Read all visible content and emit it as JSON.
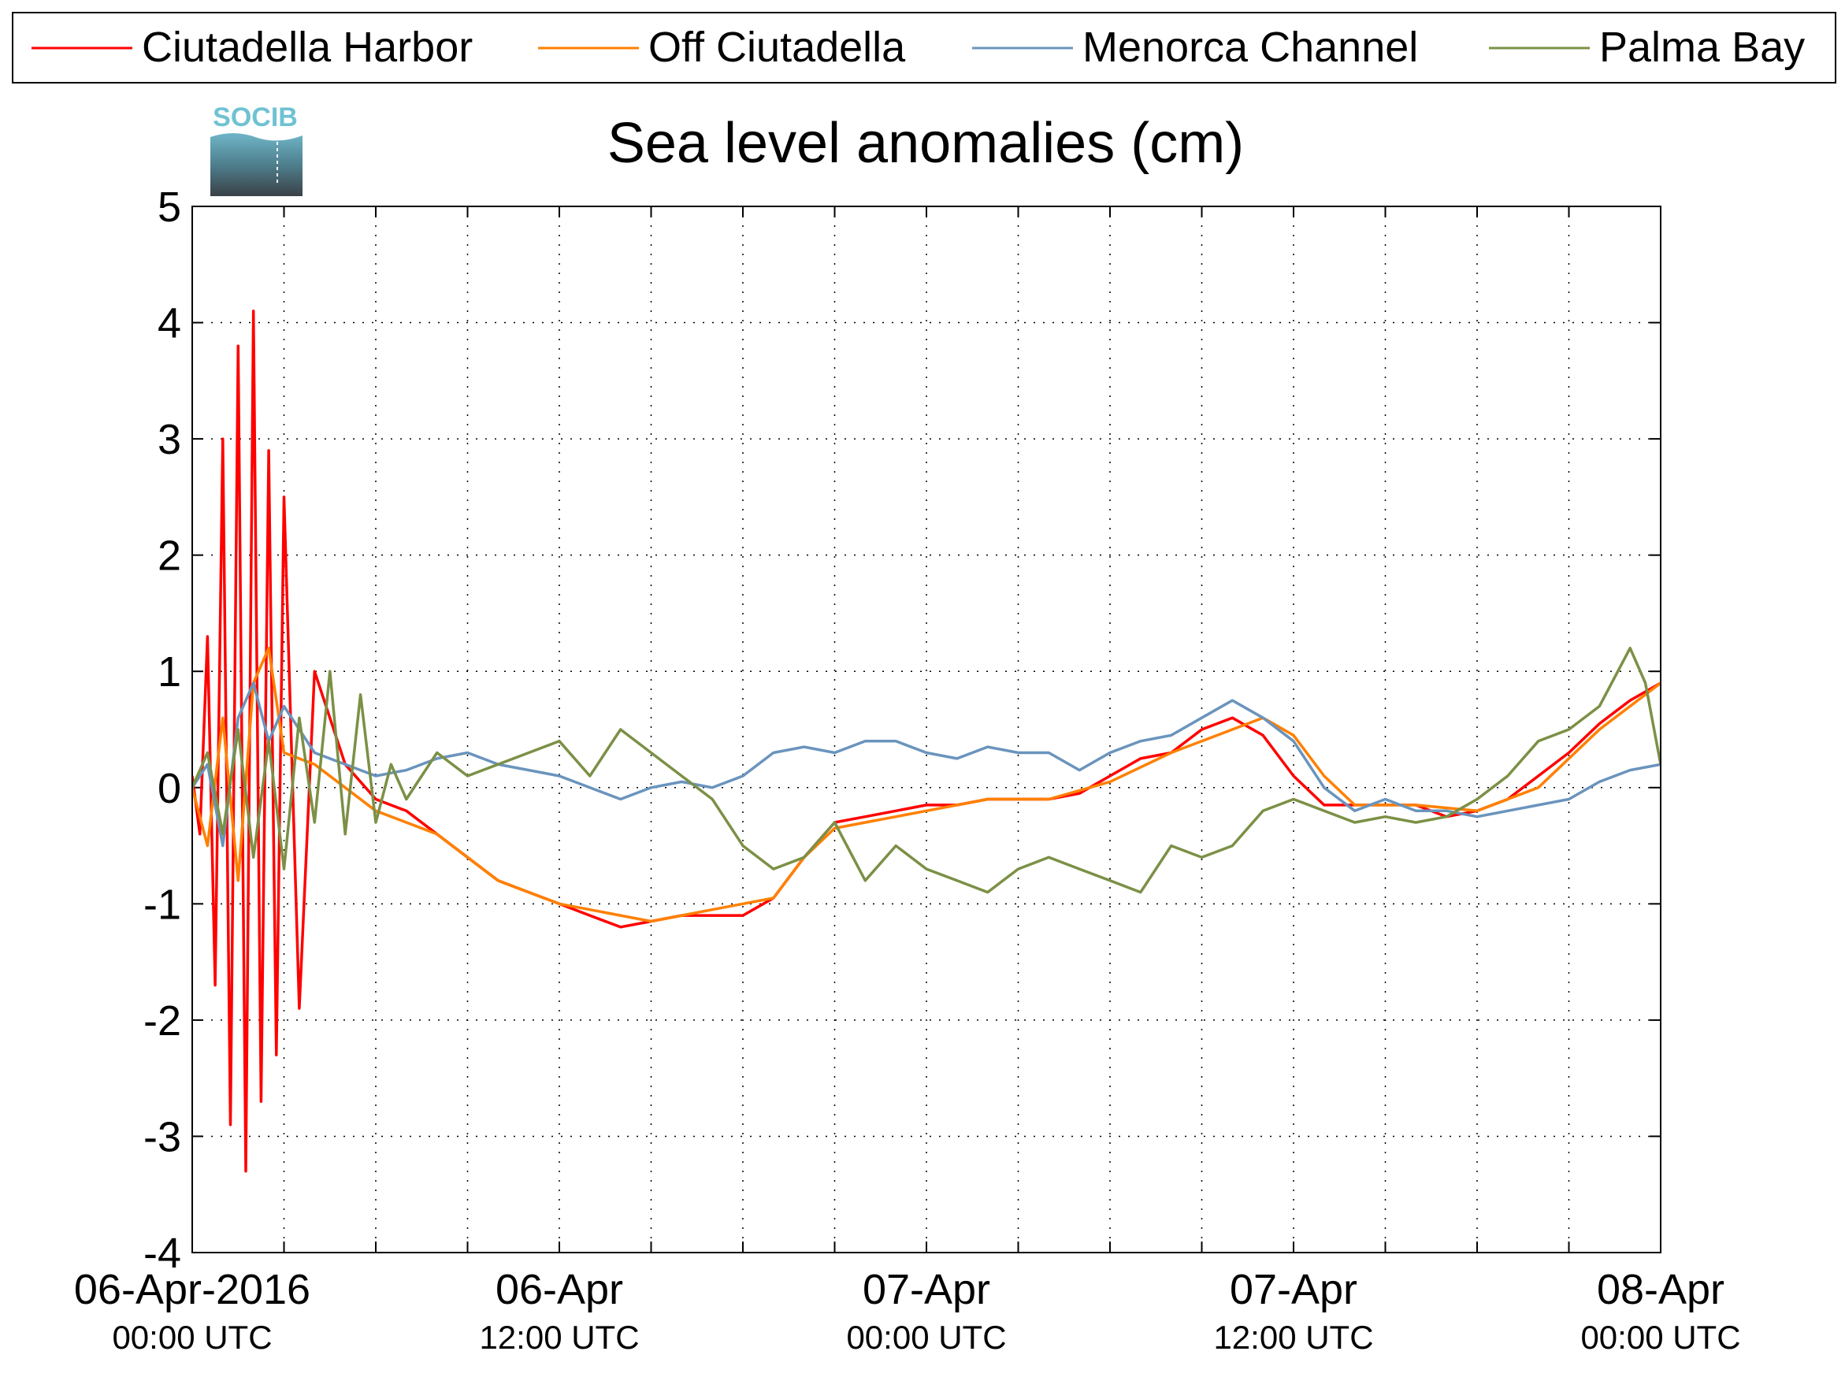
{
  "chart_data": {
    "type": "line",
    "title": "Sea level anomalies (cm)",
    "xlabel": "",
    "ylabel": "",
    "ylim": [
      -4,
      5
    ],
    "yticks": [
      -4,
      -3,
      -2,
      -1,
      0,
      1,
      2,
      3,
      4,
      5
    ],
    "ytick_labels": [
      "-4",
      "-3",
      "-2",
      "-1",
      "0",
      "1",
      "2",
      "3",
      "4",
      "5"
    ],
    "xlim": [
      "2016-04-06T00:00Z",
      "2016-04-08T00:00Z"
    ],
    "x_minor_tick_hours": 3,
    "grid": true,
    "legend_position": "top",
    "xticks": [
      {
        "x": "2016-04-06T00:00Z",
        "date": "06-Apr-2016",
        "time": "00:00 UTC"
      },
      {
        "x": "2016-04-06T12:00Z",
        "date": "06-Apr",
        "time": "12:00 UTC"
      },
      {
        "x": "2016-04-07T00:00Z",
        "date": "07-Apr",
        "time": "00:00 UTC"
      },
      {
        "x": "2016-04-07T12:00Z",
        "date": "07-Apr",
        "time": "12:00 UTC"
      },
      {
        "x": "2016-04-08T00:00Z",
        "date": "08-Apr",
        "time": "00:00 UTC"
      }
    ],
    "logo_text": "SOCIB",
    "series": [
      {
        "name": "Ciutadella Harbor",
        "color": "#ff0000",
        "x": [
          "2016-04-06T00:00Z",
          "2016-04-06T00:15Z",
          "2016-04-06T00:30Z",
          "2016-04-06T00:45Z",
          "2016-04-06T01:00Z",
          "2016-04-06T01:15Z",
          "2016-04-06T01:30Z",
          "2016-04-06T01:45Z",
          "2016-04-06T02:00Z",
          "2016-04-06T02:15Z",
          "2016-04-06T02:30Z",
          "2016-04-06T02:45Z",
          "2016-04-06T03:00Z",
          "2016-04-06T03:30Z",
          "2016-04-06T04:00Z",
          "2016-04-06T05:00Z",
          "2016-04-06T06:00Z",
          "2016-04-06T07:00Z",
          "2016-04-06T08:00Z",
          "2016-04-06T09:00Z",
          "2016-04-06T10:00Z",
          "2016-04-06T11:00Z",
          "2016-04-06T12:00Z",
          "2016-04-06T13:00Z",
          "2016-04-06T14:00Z",
          "2016-04-06T15:00Z",
          "2016-04-06T16:00Z",
          "2016-04-06T17:00Z",
          "2016-04-06T18:00Z",
          "2016-04-06T19:00Z",
          "2016-04-06T20:00Z",
          "2016-04-06T21:00Z",
          "2016-04-06T22:00Z",
          "2016-04-06T23:00Z",
          "2016-04-07T00:00Z",
          "2016-04-07T01:00Z",
          "2016-04-07T02:00Z",
          "2016-04-07T03:00Z",
          "2016-04-07T04:00Z",
          "2016-04-07T05:00Z",
          "2016-04-07T06:00Z",
          "2016-04-07T07:00Z",
          "2016-04-07T08:00Z",
          "2016-04-07T09:00Z",
          "2016-04-07T10:00Z",
          "2016-04-07T11:00Z",
          "2016-04-07T12:00Z",
          "2016-04-07T13:00Z",
          "2016-04-07T14:00Z",
          "2016-04-07T15:00Z",
          "2016-04-07T16:00Z",
          "2016-04-07T17:00Z",
          "2016-04-07T18:00Z",
          "2016-04-07T19:00Z",
          "2016-04-07T20:00Z",
          "2016-04-07T21:00Z",
          "2016-04-07T22:00Z",
          "2016-04-07T23:00Z",
          "2016-04-08T00:00Z"
        ],
        "y": [
          0.1,
          -0.4,
          1.3,
          -1.7,
          3.0,
          -2.9,
          3.8,
          -3.3,
          4.1,
          -2.7,
          2.9,
          -2.3,
          2.5,
          -1.9,
          1.0,
          0.2,
          -0.1,
          -0.2,
          -0.4,
          -0.6,
          -0.8,
          -0.9,
          -1.0,
          -1.1,
          -1.2,
          -1.15,
          -1.1,
          -1.1,
          -1.1,
          -0.95,
          -0.6,
          -0.3,
          -0.25,
          -0.2,
          -0.15,
          -0.15,
          -0.1,
          -0.1,
          -0.1,
          -0.05,
          0.1,
          0.25,
          0.3,
          0.5,
          0.6,
          0.45,
          0.1,
          -0.15,
          -0.15,
          -0.15,
          -0.15,
          -0.25,
          -0.2,
          -0.1,
          0.1,
          0.3,
          0.55,
          0.75,
          0.9
        ]
      },
      {
        "name": "Off Ciutadella",
        "color": "#ff8000",
        "x": [
          "2016-04-06T00:00Z",
          "2016-04-06T00:30Z",
          "2016-04-06T01:00Z",
          "2016-04-06T01:30Z",
          "2016-04-06T02:00Z",
          "2016-04-06T02:30Z",
          "2016-04-06T03:00Z",
          "2016-04-06T04:00Z",
          "2016-04-06T05:00Z",
          "2016-04-06T06:00Z",
          "2016-04-06T07:00Z",
          "2016-04-06T08:00Z",
          "2016-04-06T09:00Z",
          "2016-04-06T10:00Z",
          "2016-04-06T11:00Z",
          "2016-04-06T12:00Z",
          "2016-04-06T13:00Z",
          "2016-04-06T14:00Z",
          "2016-04-06T15:00Z",
          "2016-04-06T16:00Z",
          "2016-04-06T17:00Z",
          "2016-04-06T18:00Z",
          "2016-04-06T19:00Z",
          "2016-04-06T20:00Z",
          "2016-04-06T21:00Z",
          "2016-04-06T22:00Z",
          "2016-04-06T23:00Z",
          "2016-04-07T00:00Z",
          "2016-04-07T02:00Z",
          "2016-04-07T04:00Z",
          "2016-04-07T06:00Z",
          "2016-04-07T08:00Z",
          "2016-04-07T10:00Z",
          "2016-04-07T11:00Z",
          "2016-04-07T12:00Z",
          "2016-04-07T13:00Z",
          "2016-04-07T14:00Z",
          "2016-04-07T16:00Z",
          "2016-04-07T18:00Z",
          "2016-04-07T20:00Z",
          "2016-04-07T22:00Z",
          "2016-04-08T00:00Z"
        ],
        "y": [
          0.0,
          -0.5,
          0.6,
          -0.8,
          0.9,
          1.2,
          0.3,
          0.2,
          0.0,
          -0.2,
          -0.3,
          -0.4,
          -0.6,
          -0.8,
          -0.9,
          -1.0,
          -1.05,
          -1.1,
          -1.15,
          -1.1,
          -1.05,
          -1.0,
          -0.95,
          -0.6,
          -0.35,
          -0.3,
          -0.25,
          -0.2,
          -0.1,
          -0.1,
          0.05,
          0.3,
          0.5,
          0.6,
          0.45,
          0.1,
          -0.15,
          -0.15,
          -0.2,
          0.0,
          0.5,
          0.9
        ]
      },
      {
        "name": "Menorca Channel",
        "color": "#6a94bd",
        "x": [
          "2016-04-06T00:00Z",
          "2016-04-06T00:30Z",
          "2016-04-06T01:00Z",
          "2016-04-06T01:30Z",
          "2016-04-06T02:00Z",
          "2016-04-06T02:30Z",
          "2016-04-06T03:00Z",
          "2016-04-06T04:00Z",
          "2016-04-06T05:00Z",
          "2016-04-06T06:00Z",
          "2016-04-06T07:00Z",
          "2016-04-06T08:00Z",
          "2016-04-06T09:00Z",
          "2016-04-06T10:00Z",
          "2016-04-06T11:00Z",
          "2016-04-06T12:00Z",
          "2016-04-06T13:00Z",
          "2016-04-06T14:00Z",
          "2016-04-06T15:00Z",
          "2016-04-06T16:00Z",
          "2016-04-06T17:00Z",
          "2016-04-06T18:00Z",
          "2016-04-06T19:00Z",
          "2016-04-06T20:00Z",
          "2016-04-06T21:00Z",
          "2016-04-06T22:00Z",
          "2016-04-06T23:00Z",
          "2016-04-07T00:00Z",
          "2016-04-07T01:00Z",
          "2016-04-07T02:00Z",
          "2016-04-07T03:00Z",
          "2016-04-07T04:00Z",
          "2016-04-07T05:00Z",
          "2016-04-07T06:00Z",
          "2016-04-07T07:00Z",
          "2016-04-07T08:00Z",
          "2016-04-07T09:00Z",
          "2016-04-07T10:00Z",
          "2016-04-07T11:00Z",
          "2016-04-07T12:00Z",
          "2016-04-07T13:00Z",
          "2016-04-07T14:00Z",
          "2016-04-07T15:00Z",
          "2016-04-07T16:00Z",
          "2016-04-07T17:00Z",
          "2016-04-07T18:00Z",
          "2016-04-07T19:00Z",
          "2016-04-07T20:00Z",
          "2016-04-07T21:00Z",
          "2016-04-07T22:00Z",
          "2016-04-07T23:00Z",
          "2016-04-08T00:00Z"
        ],
        "y": [
          0.0,
          0.2,
          -0.5,
          0.6,
          0.9,
          0.4,
          0.7,
          0.3,
          0.2,
          0.1,
          0.15,
          0.25,
          0.3,
          0.2,
          0.15,
          0.1,
          0.0,
          -0.1,
          0.0,
          0.05,
          0.0,
          0.1,
          0.3,
          0.35,
          0.3,
          0.4,
          0.4,
          0.3,
          0.25,
          0.35,
          0.3,
          0.3,
          0.15,
          0.3,
          0.4,
          0.45,
          0.6,
          0.75,
          0.6,
          0.4,
          0.0,
          -0.2,
          -0.1,
          -0.2,
          -0.2,
          -0.25,
          -0.2,
          -0.15,
          -0.1,
          0.05,
          0.15,
          0.2
        ]
      },
      {
        "name": "Palma Bay",
        "color": "#7c9046",
        "x": [
          "2016-04-06T00:00Z",
          "2016-04-06T00:30Z",
          "2016-04-06T01:00Z",
          "2016-04-06T01:30Z",
          "2016-04-06T02:00Z",
          "2016-04-06T02:30Z",
          "2016-04-06T03:00Z",
          "2016-04-06T03:30Z",
          "2016-04-06T04:00Z",
          "2016-04-06T04:30Z",
          "2016-04-06T05:00Z",
          "2016-04-06T05:30Z",
          "2016-04-06T06:00Z",
          "2016-04-06T06:30Z",
          "2016-04-06T07:00Z",
          "2016-04-06T08:00Z",
          "2016-04-06T09:00Z",
          "2016-04-06T10:00Z",
          "2016-04-06T11:00Z",
          "2016-04-06T12:00Z",
          "2016-04-06T13:00Z",
          "2016-04-06T14:00Z",
          "2016-04-06T15:00Z",
          "2016-04-06T16:00Z",
          "2016-04-06T17:00Z",
          "2016-04-06T18:00Z",
          "2016-04-06T19:00Z",
          "2016-04-06T20:00Z",
          "2016-04-06T21:00Z",
          "2016-04-06T22:00Z",
          "2016-04-06T23:00Z",
          "2016-04-07T00:00Z",
          "2016-04-07T01:00Z",
          "2016-04-07T02:00Z",
          "2016-04-07T03:00Z",
          "2016-04-07T04:00Z",
          "2016-04-07T05:00Z",
          "2016-04-07T06:00Z",
          "2016-04-07T07:00Z",
          "2016-04-07T08:00Z",
          "2016-04-07T09:00Z",
          "2016-04-07T10:00Z",
          "2016-04-07T11:00Z",
          "2016-04-07T12:00Z",
          "2016-04-07T13:00Z",
          "2016-04-07T14:00Z",
          "2016-04-07T15:00Z",
          "2016-04-07T16:00Z",
          "2016-04-07T17:00Z",
          "2016-04-07T18:00Z",
          "2016-04-07T19:00Z",
          "2016-04-07T20:00Z",
          "2016-04-07T21:00Z",
          "2016-04-07T22:00Z",
          "2016-04-07T23:00Z",
          "2016-04-07T23:30Z",
          "2016-04-08T00:00Z"
        ],
        "y": [
          0.0,
          0.3,
          -0.4,
          0.5,
          -0.6,
          0.4,
          -0.7,
          0.6,
          -0.3,
          1.0,
          -0.4,
          0.8,
          -0.3,
          0.2,
          -0.1,
          0.3,
          0.1,
          0.2,
          0.3,
          0.4,
          0.1,
          0.5,
          0.3,
          0.1,
          -0.1,
          -0.5,
          -0.7,
          -0.6,
          -0.3,
          -0.8,
          -0.5,
          -0.7,
          -0.8,
          -0.9,
          -0.7,
          -0.6,
          -0.7,
          -0.8,
          -0.9,
          -0.5,
          -0.6,
          -0.5,
          -0.2,
          -0.1,
          -0.2,
          -0.3,
          -0.25,
          -0.3,
          -0.25,
          -0.1,
          0.1,
          0.4,
          0.5,
          0.7,
          1.2,
          0.9,
          0.2
        ]
      }
    ]
  }
}
